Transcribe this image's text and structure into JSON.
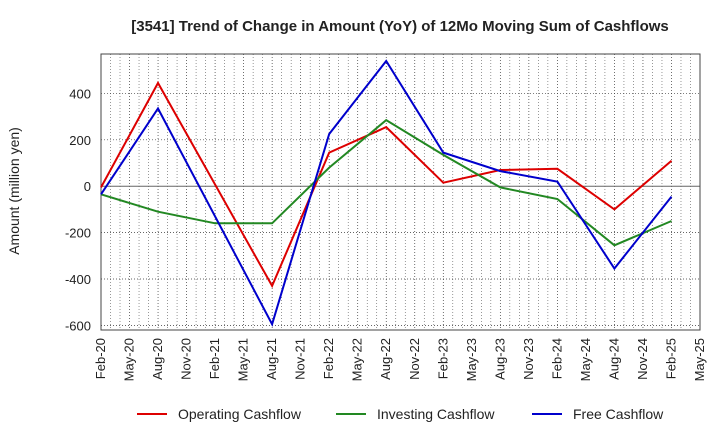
{
  "chart_data": {
    "type": "line",
    "title": "[3541]  Trend of Change in Amount (YoY) of 12Mo Moving Sum of Cashflows",
    "xlabel": "",
    "ylabel": "Amount (million yen)",
    "ylim": [
      -620,
      570
    ],
    "yticks": [
      -600,
      -400,
      -200,
      0,
      200,
      400
    ],
    "grid": true,
    "legend_position": "bottom",
    "categories": [
      "Feb-20",
      "May-20",
      "Aug-20",
      "Nov-20",
      "Feb-21",
      "May-21",
      "Aug-21",
      "Nov-21",
      "Feb-22",
      "May-22",
      "Aug-22",
      "Nov-22",
      "Feb-23",
      "May-23",
      "Aug-23",
      "Nov-23",
      "Feb-24",
      "May-24",
      "Aug-24",
      "Nov-24",
      "Feb-25",
      "May-25"
    ],
    "series": [
      {
        "name": "Operating Cashflow",
        "color": "#dd0000",
        "points": [
          [
            "Feb-20",
            -5
          ],
          [
            "Aug-20",
            445
          ],
          [
            "Aug-21",
            -430
          ],
          [
            "Feb-22",
            145
          ],
          [
            "Aug-22",
            255
          ],
          [
            "Feb-23",
            15
          ],
          [
            "Aug-23",
            70
          ],
          [
            "Feb-24",
            75
          ],
          [
            "Aug-24",
            -100
          ],
          [
            "Feb-25",
            110
          ]
        ]
      },
      {
        "name": "Investing Cashflow",
        "color": "#228822",
        "points": [
          [
            "Feb-20",
            -35
          ],
          [
            "Aug-20",
            -110
          ],
          [
            "Feb-21",
            -160
          ],
          [
            "Aug-21",
            -160
          ],
          [
            "Feb-22",
            80
          ],
          [
            "Aug-22",
            285
          ],
          [
            "Feb-23",
            135
          ],
          [
            "Aug-23",
            -5
          ],
          [
            "Feb-24",
            -55
          ],
          [
            "Aug-24",
            -255
          ],
          [
            "Feb-25",
            -150
          ]
        ]
      },
      {
        "name": "Free Cashflow",
        "color": "#0000cc",
        "points": [
          [
            "Feb-20",
            -35
          ],
          [
            "Aug-20",
            335
          ],
          [
            "Aug-21",
            -595
          ],
          [
            "Feb-22",
            225
          ],
          [
            "Aug-22",
            540
          ],
          [
            "Feb-23",
            145
          ],
          [
            "Aug-23",
            65
          ],
          [
            "Feb-24",
            20
          ],
          [
            "Aug-24",
            -355
          ],
          [
            "Feb-25",
            -45
          ]
        ]
      }
    ]
  }
}
